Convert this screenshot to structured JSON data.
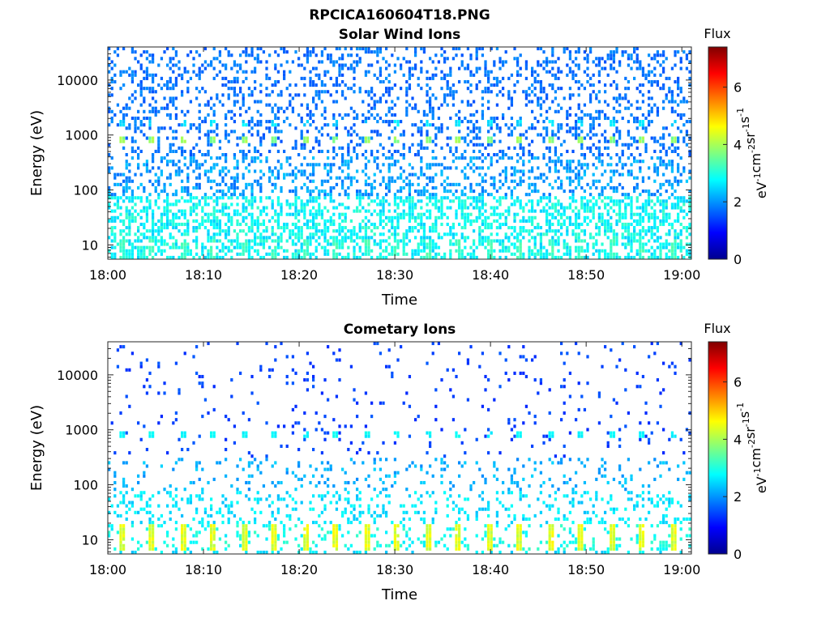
{
  "figure": {
    "title": "RPCICA160604T18.PNG"
  },
  "chart_data": [
    {
      "type": "heatmap",
      "title": "Solar Wind Ions",
      "xlabel": "Time",
      "ylabel": "Energy (eV)",
      "x_ticks": [
        "18:00",
        "18:10",
        "18:20",
        "18:30",
        "18:40",
        "18:50",
        "19:00"
      ],
      "x_range_minutes": [
        0,
        61
      ],
      "y_ticks": [
        "10",
        "100",
        "1000",
        "10000"
      ],
      "y_scale": "log",
      "y_range": [
        5.5,
        40000
      ],
      "colorbar": {
        "title": "Flux",
        "label": "eV-1cm-2sr-1s-1",
        "label_base": "eV",
        "label_parts": [
          {
            "base": "eV",
            "sup": "-1"
          },
          {
            "base": "cm",
            "sup": "-2"
          },
          {
            "base": "sr",
            "sup": "-1"
          },
          {
            "base": "s",
            "sup": "-1"
          }
        ],
        "ticks": [
          "0",
          "2",
          "4",
          "6"
        ],
        "range": [
          0,
          7.4
        ],
        "colormap": "jet"
      },
      "patterns": {
        "peak_energy_eV": 800,
        "peak_flux": 3.9,
        "peak_period_minutes": 3.2,
        "dense_low_energy_max_eV": 80,
        "high_energy_scatter_flux": 1.5
      }
    },
    {
      "type": "heatmap",
      "title": "Cometary Ions",
      "xlabel": "Time",
      "ylabel": "Energy (eV)",
      "x_ticks": [
        "18:00",
        "18:10",
        "18:20",
        "18:30",
        "18:40",
        "18:50",
        "19:00"
      ],
      "x_range_minutes": [
        0,
        61
      ],
      "y_ticks": [
        "10",
        "100",
        "1000",
        "10000"
      ],
      "y_scale": "log",
      "y_range": [
        5.5,
        40000
      ],
      "colorbar": {
        "title": "Flux",
        "label": "eV-1cm-2sr-1s-1",
        "label_parts": [
          {
            "base": "eV",
            "sup": "-1"
          },
          {
            "base": "cm",
            "sup": "-2"
          },
          {
            "base": "sr",
            "sup": "-1"
          },
          {
            "base": "s",
            "sup": "-1"
          }
        ],
        "ticks": [
          "0",
          "2",
          "4",
          "6"
        ],
        "range": [
          0,
          7.4
        ],
        "colormap": "jet"
      },
      "patterns": {
        "low_energy_band_eV": [
          6,
          18
        ],
        "low_energy_peak_flux": 4.6,
        "secondary_band_eV": 850,
        "secondary_band_flux": 2.6,
        "peak_period_minutes": 3.2,
        "high_energy_scatter_flux": 1.2
      }
    }
  ]
}
